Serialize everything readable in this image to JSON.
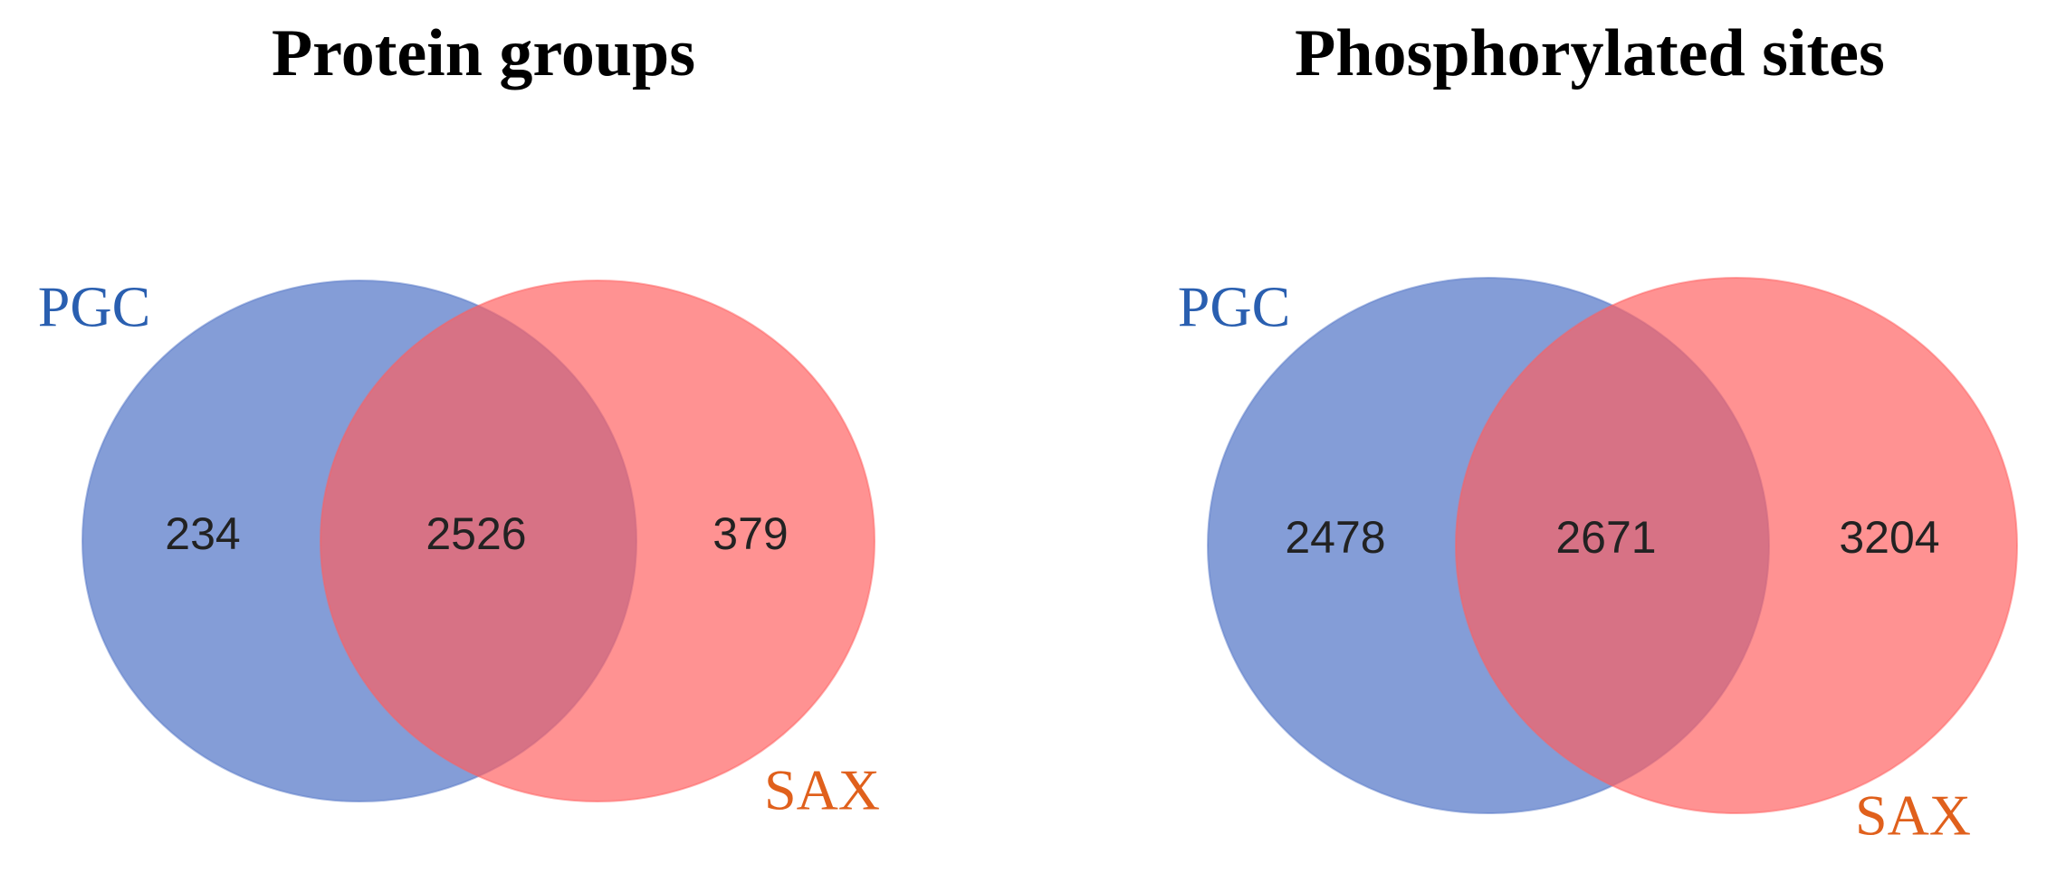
{
  "chart_data": [
    {
      "type": "venn",
      "title": "Protein groups",
      "series": [
        {
          "name": "PGC",
          "color": "#5577c8",
          "label_color": "#2a5fb0"
        },
        {
          "name": "SAX",
          "color": "#ff5e5e",
          "label_color": "#e0601c"
        }
      ],
      "categories": [
        "PGC",
        "PGC ∩ SAX",
        "SAX"
      ],
      "values": [
        234,
        2526,
        379
      ]
    },
    {
      "type": "venn",
      "title": "Phosphorylated sites",
      "series": [
        {
          "name": "PGC",
          "color": "#5577c8",
          "label_color": "#2a5fb0"
        },
        {
          "name": "SAX",
          "color": "#ff5e5e",
          "label_color": "#e0601c"
        }
      ],
      "categories": [
        "PGC",
        "PGC ∩ SAX",
        "SAX"
      ],
      "values": [
        2478,
        2671,
        3204
      ]
    }
  ]
}
